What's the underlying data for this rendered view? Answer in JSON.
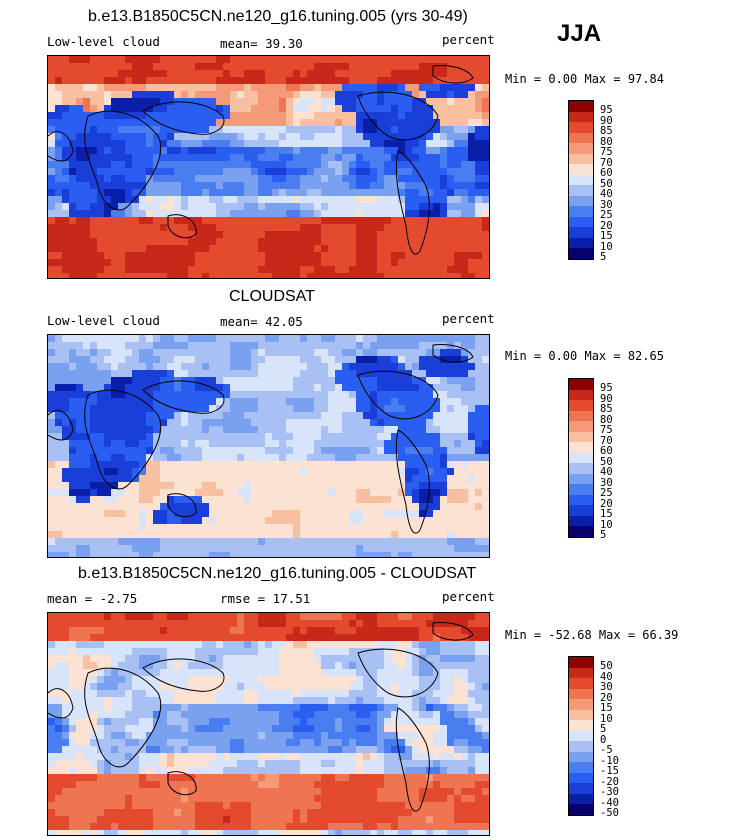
{
  "season": "JJA",
  "palette": [
    "#08006b",
    "#0a1fa8",
    "#1a3fd8",
    "#2a5ef0",
    "#4a7ef0",
    "#7aa0f0",
    "#a8c0f3",
    "#d8e4fa",
    "#fbe2d2",
    "#f8bfa0",
    "#f59a78",
    "#ef7452",
    "#e34a2e",
    "#c8281a",
    "#8c0000"
  ],
  "panels": [
    {
      "title": "b.e13.B1850C5CN.ne120_g16.tuning.005 (yrs 30-49)",
      "left_label": "Low-level cloud",
      "stat1": "mean=  39.30",
      "stat2": "",
      "units": "percent",
      "minmax": "Min =   0.00 Max =  97.84",
      "levels": [
        "95",
        "90",
        "85",
        "80",
        "75",
        "70",
        "60",
        "50",
        "40",
        "30",
        "25",
        "20",
        "15",
        "10",
        "5"
      ],
      "field": "model"
    },
    {
      "title": "CLOUDSAT",
      "left_label": "Low-level cloud",
      "stat1": "mean=  42.05",
      "stat2": "",
      "units": "percent",
      "minmax": "Min =   0.00 Max =  82.65",
      "levels": [
        "95",
        "90",
        "85",
        "80",
        "75",
        "70",
        "60",
        "50",
        "40",
        "30",
        "25",
        "20",
        "15",
        "10",
        "5"
      ],
      "field": "obs"
    },
    {
      "title": "b.e13.B1850C5CN.ne120_g16.tuning.005 - CLOUDSAT",
      "left_label": "mean =  -2.75",
      "stat1": "rmse =  17.51",
      "stat2": "",
      "units": "percent",
      "minmax": "Min = -52.68 Max =  66.39",
      "levels": [
        "50",
        "40",
        "30",
        "20",
        "15",
        "10",
        "5",
        "0",
        "-5",
        "-10",
        "-15",
        "-20",
        "-30",
        "-40",
        "-50"
      ],
      "field": "diff"
    }
  ]
}
